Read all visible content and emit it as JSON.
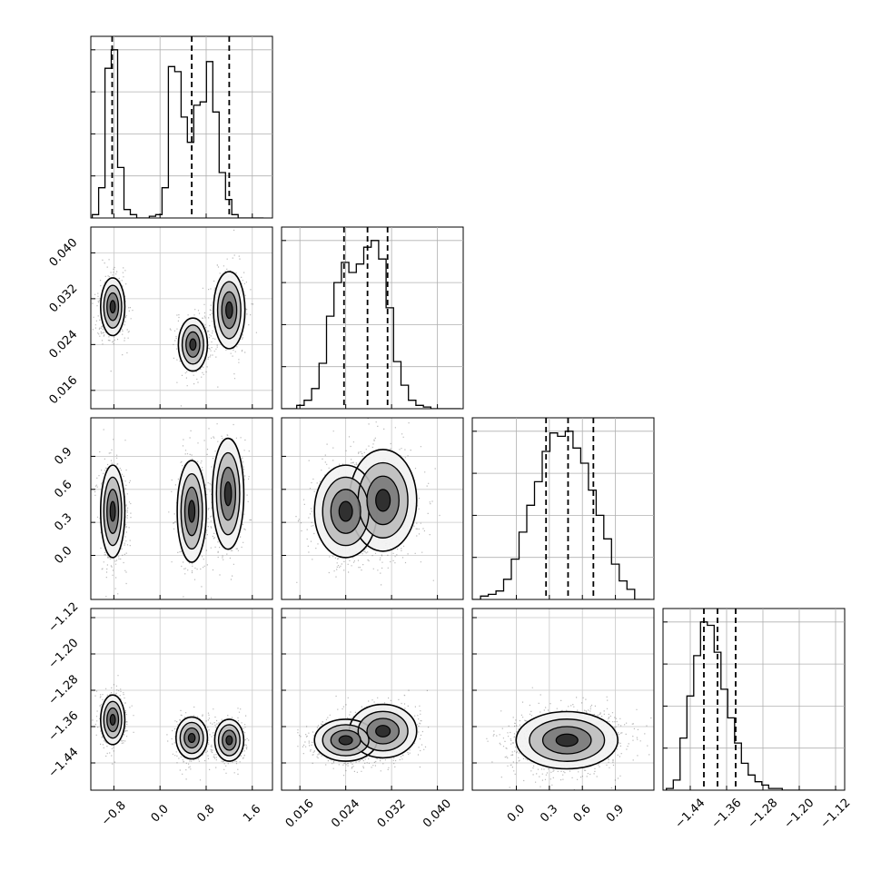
{
  "chart_data": {
    "type": "corner",
    "n_params": 4,
    "parameters": [
      {
        "range": [
          -1.2,
          1.95
        ],
        "ticks": [
          -0.8,
          0.0,
          0.8,
          1.6
        ],
        "tick_labels": [
          "−0.8",
          "0.0",
          "0.8",
          "1.6"
        ],
        "quantiles": [
          -0.83,
          0.55,
          1.2
        ],
        "hist": {
          "bin_centers": [
            -1.12,
            -1.01,
            -0.9,
            -0.79,
            -0.68,
            -0.57,
            -0.46,
            -0.35,
            -0.24,
            -0.13,
            -0.02,
            0.09,
            0.2,
            0.31,
            0.42,
            0.53,
            0.64,
            0.75,
            0.86,
            0.97,
            1.08,
            1.19,
            1.3,
            1.41,
            1.52,
            1.63,
            1.74
          ],
          "values": [
            0.02,
            0.18,
            0.89,
            1.0,
            0.3,
            0.05,
            0.02,
            0.0,
            0.0,
            0.01,
            0.02,
            0.18,
            0.9,
            0.87,
            0.6,
            0.45,
            0.67,
            0.69,
            0.93,
            0.63,
            0.27,
            0.11,
            0.02,
            0.0,
            0.0,
            0.0,
            0.0
          ]
        }
      },
      {
        "range": [
          0.0128,
          0.0445
        ],
        "ticks": [
          0.016,
          0.024,
          0.032,
          0.04
        ],
        "tick_labels": [
          "0.016",
          "0.024",
          "0.032",
          "0.040"
        ],
        "quantiles": [
          0.0237,
          0.0278,
          0.0313
        ],
        "hist": {
          "bin_centers": [
            0.0135,
            0.0148,
            0.0161,
            0.0174,
            0.0187,
            0.02,
            0.0213,
            0.0226,
            0.0239,
            0.0252,
            0.0265,
            0.0278,
            0.0291,
            0.0304,
            0.0317,
            0.033,
            0.0343,
            0.0356,
            0.0369,
            0.0382,
            0.0395,
            0.0408,
            0.0421,
            0.0434
          ],
          "values": [
            0.0,
            0.0,
            0.02,
            0.05,
            0.12,
            0.27,
            0.55,
            0.75,
            0.87,
            0.81,
            0.86,
            0.96,
            1.0,
            0.89,
            0.6,
            0.28,
            0.14,
            0.05,
            0.02,
            0.01,
            0.0,
            0.0,
            0.0,
            0.0
          ]
        }
      },
      {
        "range": [
          -0.4,
          1.25
        ],
        "ticks": [
          0.0,
          0.3,
          0.6,
          0.9
        ],
        "tick_labels": [
          "0.0",
          "0.3",
          "0.6",
          "0.9"
        ],
        "quantiles": [
          0.27,
          0.47,
          0.7
        ],
        "hist": {
          "bin_centers": [
            -0.36,
            -0.29,
            -0.22,
            -0.15,
            -0.08,
            -0.01,
            0.06,
            0.13,
            0.2,
            0.27,
            0.34,
            0.41,
            0.48,
            0.55,
            0.62,
            0.69,
            0.76,
            0.83,
            0.9,
            0.97,
            1.04,
            1.11,
            1.18
          ],
          "values": [
            0.0,
            0.02,
            0.03,
            0.05,
            0.12,
            0.24,
            0.4,
            0.56,
            0.7,
            0.88,
            0.99,
            0.97,
            1.0,
            0.9,
            0.81,
            0.65,
            0.5,
            0.36,
            0.21,
            0.11,
            0.06,
            0.0,
            0.0
          ]
        }
      },
      {
        "range": [
          -1.5,
          -1.1
        ],
        "ticks": [
          -1.44,
          -1.36,
          -1.28,
          -1.2,
          -1.12
        ],
        "tick_labels": [
          "−1.44",
          "−1.36",
          "−1.28",
          "−1.20",
          "−1.12"
        ],
        "quantiles": [
          -1.41,
          -1.38,
          -1.34
        ],
        "hist": {
          "bin_centers": [
            -1.485,
            -1.47,
            -1.455,
            -1.44,
            -1.425,
            -1.41,
            -1.395,
            -1.38,
            -1.365,
            -1.35,
            -1.335,
            -1.32,
            -1.305,
            -1.29,
            -1.275,
            -1.26,
            -1.245,
            -1.23,
            -1.215,
            -1.2,
            -1.185,
            -1.17,
            -1.155,
            -1.14,
            -1.125
          ],
          "values": [
            0.01,
            0.06,
            0.31,
            0.56,
            0.8,
            1.0,
            0.98,
            0.82,
            0.6,
            0.43,
            0.28,
            0.16,
            0.09,
            0.05,
            0.03,
            0.01,
            0.01,
            0.0,
            0.0,
            0.0,
            0.0,
            0.0,
            0.0,
            0.0,
            0.0
          ]
        }
      }
    ],
    "pairs": [
      {
        "x": 0,
        "y": 1,
        "modes": [
          {
            "cx": -0.82,
            "cy": 0.0306,
            "sx": 0.1,
            "sy": 0.0024,
            "w": 1.0
          },
          {
            "cx": 0.57,
            "cy": 0.024,
            "sx": 0.12,
            "sy": 0.0022,
            "w": 0.75
          },
          {
            "cx": 1.2,
            "cy": 0.03,
            "sx": 0.13,
            "sy": 0.0032,
            "w": 0.65
          }
        ]
      },
      {
        "x": 0,
        "y": 2,
        "modes": [
          {
            "cx": -0.82,
            "cy": 0.4,
            "sx": 0.1,
            "sy": 0.2,
            "w": 1.0
          },
          {
            "cx": 0.55,
            "cy": 0.4,
            "sx": 0.12,
            "sy": 0.22,
            "w": 0.75
          },
          {
            "cx": 1.18,
            "cy": 0.56,
            "sx": 0.13,
            "sy": 0.24,
            "w": 0.75
          }
        ]
      },
      {
        "x": 0,
        "y": 3,
        "modes": [
          {
            "cx": -0.82,
            "cy": -1.345,
            "sx": 0.1,
            "sy": 0.026,
            "w": 1.0
          },
          {
            "cx": 0.55,
            "cy": -1.385,
            "sx": 0.13,
            "sy": 0.022,
            "w": 0.8
          },
          {
            "cx": 1.2,
            "cy": -1.39,
            "sx": 0.12,
            "sy": 0.022,
            "w": 0.8
          }
        ]
      },
      {
        "x": 1,
        "y": 2,
        "modes": [
          {
            "cx": 0.024,
            "cy": 0.4,
            "sx": 0.0026,
            "sy": 0.2,
            "w": 0.9
          },
          {
            "cx": 0.0305,
            "cy": 0.5,
            "sx": 0.0028,
            "sy": 0.22,
            "w": 1.0
          }
        ]
      },
      {
        "x": 1,
        "y": 3,
        "modes": [
          {
            "cx": 0.024,
            "cy": -1.39,
            "sx": 0.0026,
            "sy": 0.022,
            "w": 1.0
          },
          {
            "cx": 0.0305,
            "cy": -1.37,
            "sx": 0.0028,
            "sy": 0.028,
            "w": 0.85
          }
        ]
      },
      {
        "x": 2,
        "y": 3,
        "modes": [
          {
            "cx": 0.46,
            "cy": -1.39,
            "sx": 0.22,
            "sy": 0.03,
            "w": 1.0
          }
        ]
      }
    ],
    "contour_levels": 4,
    "quantile_line_style": "dashed",
    "grid": true,
    "legend": null
  }
}
